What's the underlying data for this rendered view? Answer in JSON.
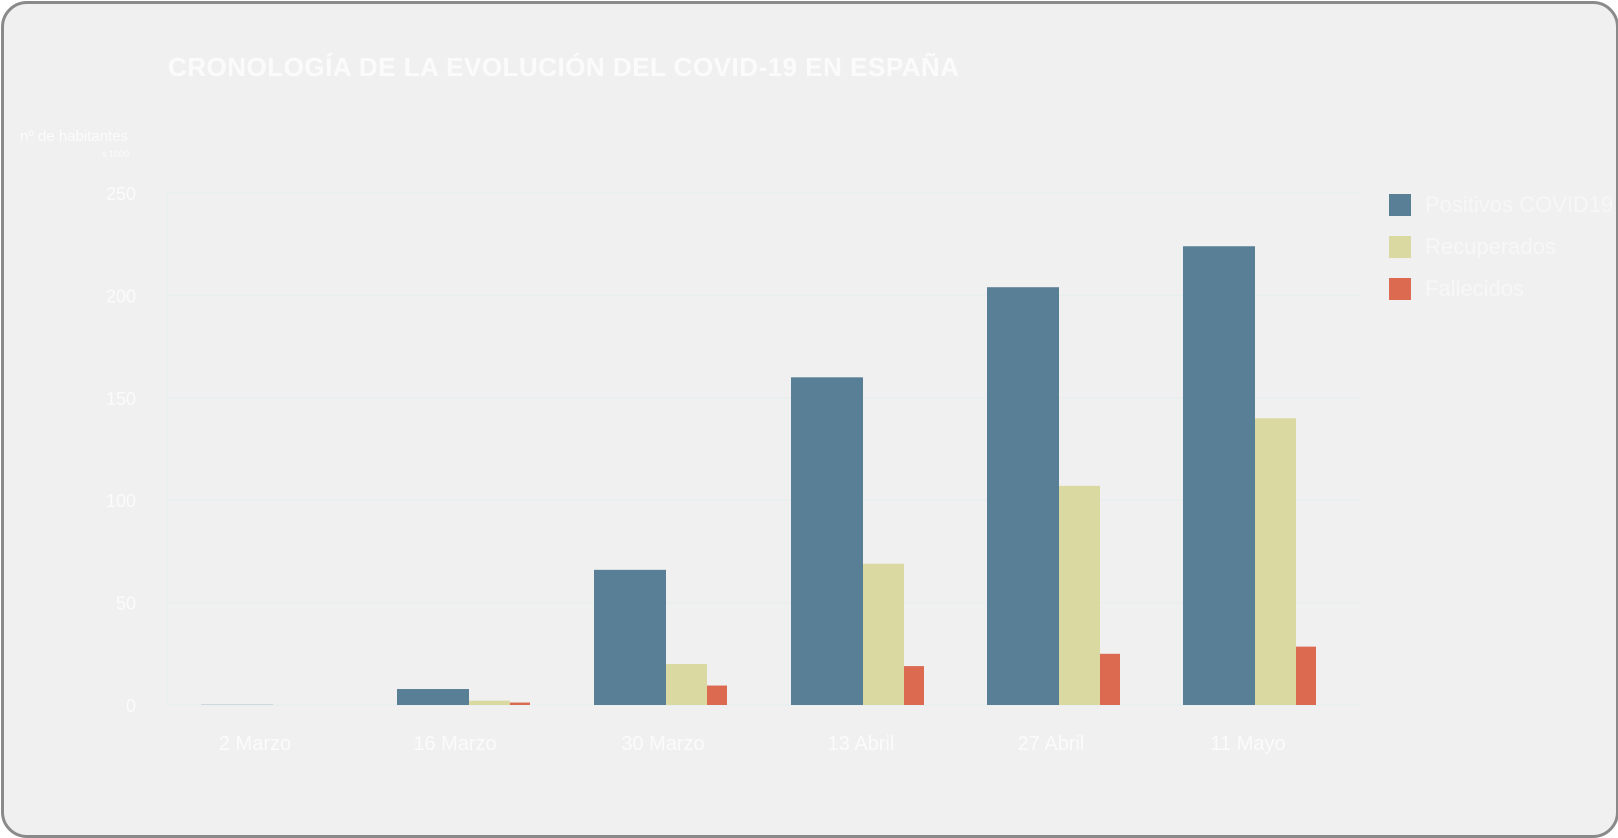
{
  "chart_data": {
    "type": "bar",
    "title": "CRONOLOGÍA DE LA EVOLUCIÓN DEL COVID-19 EN ESPAÑA",
    "ylabel": "nº de habitantes",
    "yunit": "x 1000",
    "xlabel": "",
    "categories": [
      "2 Marzo",
      "16 Marzo",
      "30 Marzo",
      "13 Abril",
      "27 Abril",
      "11 Mayo"
    ],
    "ylim": [
      0,
      250
    ],
    "yticks": [
      0,
      50,
      100,
      150,
      200,
      250
    ],
    "grid": true,
    "legend_position": "top-right",
    "series": [
      {
        "name": "Positivos COVID19",
        "color": "#587f95",
        "values": [
          0.1,
          7.8,
          66,
          160,
          204,
          224
        ]
      },
      {
        "name": "Recuperados",
        "color": "#dad9a1",
        "values": [
          0,
          2.1,
          20,
          69,
          107,
          140
        ]
      },
      {
        "name": "Fallecidos",
        "color": "#db6a51",
        "values": [
          0,
          1.2,
          9.5,
          19,
          25,
          28.5
        ]
      }
    ]
  }
}
